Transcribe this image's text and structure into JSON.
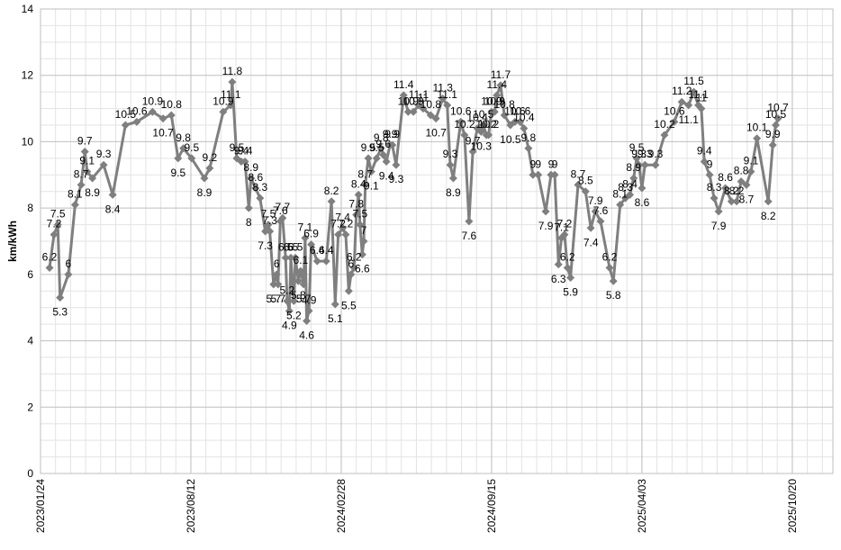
{
  "chart_data": {
    "type": "line",
    "y_label": "km/kWh",
    "color": "#7f7f7f",
    "grid": true,
    "minor_grid": true,
    "data_labels": true,
    "xlim": [
      "2023/01/24",
      "2025/12/13"
    ],
    "xticks": [
      "2023/01/24",
      "2023/08/12",
      "2024/02/28",
      "2024/09/15",
      "2025/04/03",
      "2025/10/20"
    ],
    "ylim": [
      0,
      14
    ],
    "yticks": [
      0,
      2,
      4,
      6,
      8,
      10,
      12,
      14
    ],
    "x": [
      "2023/02/05",
      "2023/02/11",
      "2023/02/16",
      "2023/02/19",
      "2023/03/02",
      "2023/03/11",
      "2023/03/19",
      "2023/03/24",
      "2023/03/27",
      "2023/04/03",
      "2023/04/18",
      "2023/04/30",
      "2023/05/17",
      "2023/06/01",
      "2023/06/22",
      "2023/07/06",
      "2023/07/17",
      "2023/07/26",
      "2023/08/02",
      "2023/08/13",
      "2023/08/30",
      "2023/09/06",
      "2023/09/24",
      "2023/10/04",
      "2023/10/06",
      "2023/10/12",
      "2023/10/18",
      "2023/10/23",
      "2023/10/28",
      "2023/10/31",
      "2023/11/06",
      "2023/11/12",
      "2023/11/19",
      "2023/11/23",
      "2023/11/25",
      "2023/11/30",
      "2023/12/04",
      "2023/12/06",
      "2023/12/09",
      "2023/12/12",
      "2023/12/16",
      "2023/12/18",
      "2023/12/21",
      "2023/12/23",
      "2023/12/27",
      "2023/12/29",
      "2024/01/02",
      "2024/01/05",
      "2024/01/09",
      "2024/01/11",
      "2024/01/13",
      "2024/01/16",
      "2024/01/19",
      "2024/01/27",
      "2024/02/08",
      "2024/02/15",
      "2024/02/20",
      "2024/02/24",
      "2024/03/01",
      "2024/03/05",
      "2024/03/09",
      "2024/03/12",
      "2024/03/16",
      "2024/03/19",
      "2024/03/22",
      "2024/03/24",
      "2024/03/27",
      "2024/03/29",
      "2024/03/31",
      "2024/04/04",
      "2024/04/08",
      "2024/04/15",
      "2024/04/21",
      "2024/04/24",
      "2024/04/28",
      "2024/05/03",
      "2024/05/06",
      "2024/05/11",
      "2024/05/21",
      "2024/05/27",
      "2024/06/03",
      "2024/06/10",
      "2024/06/16",
      "2024/06/26",
      "2024/07/03",
      "2024/07/12",
      "2024/07/18",
      "2024/07/22",
      "2024/07/26",
      "2024/08/05",
      "2024/08/10",
      "2024/08/16",
      "2024/08/21",
      "2024/08/27",
      "2024/09/01",
      "2024/09/04",
      "2024/09/08",
      "2024/09/11",
      "2024/09/15",
      "2024/09/19",
      "2024/09/22",
      "2024/09/27",
      "2024/10/02",
      "2024/10/10",
      "2024/10/16",
      "2024/10/23",
      "2024/10/28",
      "2024/11/03",
      "2024/11/09",
      "2024/11/16",
      "2024/11/26",
      "2024/12/03",
      "2024/12/08",
      "2024/12/13",
      "2024/12/17",
      "2024/12/21",
      "2024/12/25",
      "2024/12/29",
      "2025/01/08",
      "2025/01/18",
      "2025/01/25",
      "2025/01/31",
      "2025/02/07",
      "2025/02/19",
      "2025/02/24",
      "2025/03/05",
      "2025/03/12",
      "2025/03/18",
      "2025/03/23",
      "2025/03/27",
      "2025/03/30",
      "2025/04/03",
      "2025/04/07",
      "2025/04/21",
      "2025/05/03",
      "2025/05/16",
      "2025/05/26",
      "2025/06/04",
      "2025/06/11",
      "2025/06/17",
      "2025/06/21",
      "2025/06/25",
      "2025/07/02",
      "2025/07/08",
      "2025/07/14",
      "2025/07/23",
      "2025/07/31",
      "2025/08/07",
      "2025/08/13",
      "2025/08/20",
      "2025/08/26",
      "2025/09/03",
      "2025/09/18",
      "2025/09/24",
      "2025/09/28",
      "2025/10/01"
    ],
    "values": [
      6.2,
      7.2,
      7.5,
      5.3,
      6,
      8.1,
      8.7,
      9.7,
      9.1,
      8.9,
      9.3,
      8.4,
      10.5,
      10.6,
      10.9,
      10.7,
      10.8,
      9.5,
      9.8,
      9.5,
      8.9,
      9.2,
      10.9,
      11.1,
      11.8,
      9.5,
      9.4,
      9.4,
      8,
      8.9,
      8.6,
      8.3,
      7.3,
      7.5,
      7.3,
      5.7,
      6,
      5.7,
      7.6,
      7.7,
      6.5,
      5.2,
      4.9,
      6.5,
      5.2,
      6.5,
      5.8,
      6.1,
      5.7,
      7.1,
      4.6,
      4.9,
      6.9,
      6.4,
      6.4,
      8.2,
      5.1,
      7.2,
      7.4,
      7.2,
      5.5,
      6,
      6.2,
      7.8,
      8.4,
      7.5,
      6.6,
      7,
      8.7,
      9.5,
      9.1,
      9.5,
      9.8,
      9.6,
      9.4,
      9.9,
      9.9,
      9.3,
      11.4,
      10.9,
      10.9,
      11.1,
      11,
      10.8,
      10.7,
      11.3,
      11.1,
      9.3,
      8.9,
      10.6,
      10.2,
      7.6,
      9.7,
      10.4,
      10.3,
      10.5,
      10.2,
      10.2,
      10.9,
      10.9,
      11.4,
      11.7,
      10.8,
      10.5,
      10.6,
      10.6,
      10.4,
      9.8,
      9,
      9,
      7.9,
      9,
      9,
      6.3,
      7.1,
      7.2,
      6.2,
      5.9,
      8.7,
      8.5,
      7.4,
      7.9,
      7.6,
      6.2,
      5.8,
      8.1,
      8.3,
      8.4,
      8.9,
      9.5,
      9.3,
      8.6,
      9.3,
      9.3,
      10.2,
      10.6,
      11.2,
      11.1,
      11.5,
      11.1,
      11,
      9.4,
      9,
      8.3,
      7.9,
      8.6,
      8.2,
      8.2,
      8.8,
      8.7,
      9.1,
      10.1,
      8.2,
      9.9,
      10.5,
      10.7
    ]
  }
}
